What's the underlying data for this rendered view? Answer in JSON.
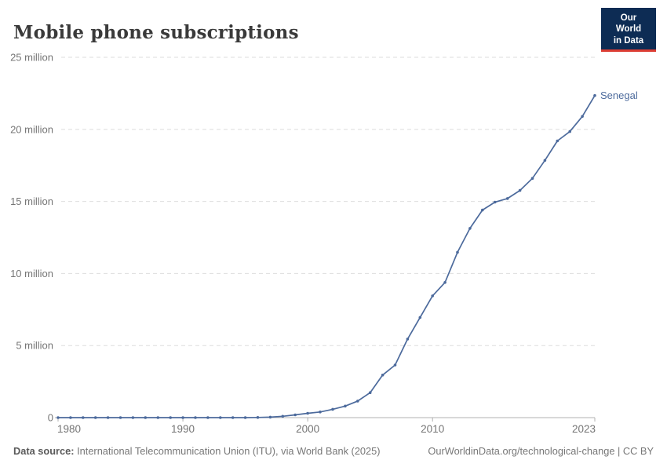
{
  "header": {
    "title": "Mobile phone subscriptions"
  },
  "logo": {
    "line1": "Our World",
    "line2": "in Data",
    "bg_color": "#0d2c54",
    "accent_color": "#dc3d33"
  },
  "chart_data": {
    "type": "line",
    "title": "Mobile phone subscriptions",
    "xlabel": "",
    "ylabel": "",
    "unit": "million",
    "grid": "dashed-horizontal",
    "legend_position": "end-of-line-label",
    "xlim": [
      1980,
      2023
    ],
    "ylim": [
      0,
      25
    ],
    "xticks": [
      1980,
      1990,
      2000,
      2010,
      2023
    ],
    "yticks": [
      {
        "value": 0,
        "label": "0"
      },
      {
        "value": 5,
        "label": "5 million"
      },
      {
        "value": 10,
        "label": "10 million"
      },
      {
        "value": 15,
        "label": "15 million"
      },
      {
        "value": 20,
        "label": "20 million"
      },
      {
        "value": 25,
        "label": "25 million"
      }
    ],
    "x": [
      1980,
      1981,
      1982,
      1983,
      1984,
      1985,
      1986,
      1987,
      1988,
      1989,
      1990,
      1991,
      1992,
      1993,
      1994,
      1995,
      1996,
      1997,
      1998,
      1999,
      2000,
      2001,
      2002,
      2003,
      2004,
      2005,
      2006,
      2007,
      2008,
      2009,
      2010,
      2011,
      2012,
      2013,
      2014,
      2015,
      2016,
      2017,
      2018,
      2019,
      2020,
      2021,
      2022,
      2023
    ],
    "series": [
      {
        "name": "Senegal",
        "color": "#4c6a9c",
        "values_millions": [
          0,
          0,
          0,
          0,
          0,
          0,
          0,
          0,
          0,
          0,
          0,
          0,
          0,
          0,
          0.001,
          0.002,
          0.01,
          0.03,
          0.09,
          0.19,
          0.3,
          0.39,
          0.58,
          0.8,
          1.15,
          1.73,
          2.95,
          3.65,
          5.45,
          6.95,
          8.45,
          9.38,
          11.47,
          13.13,
          14.4,
          14.95,
          15.2,
          15.76,
          16.6,
          17.85,
          19.2,
          19.85,
          20.9,
          22.35
        ]
      }
    ],
    "axis_color": "#b0b0b0",
    "gridline_color": "#dedede",
    "tick_label_color": "#757575"
  },
  "footer": {
    "source_label": "Data source:",
    "source_text": " International Telecommunication Union (ITU), via World Bank (2025)",
    "link_text": "OurWorldinData.org/technological-change | CC BY"
  }
}
